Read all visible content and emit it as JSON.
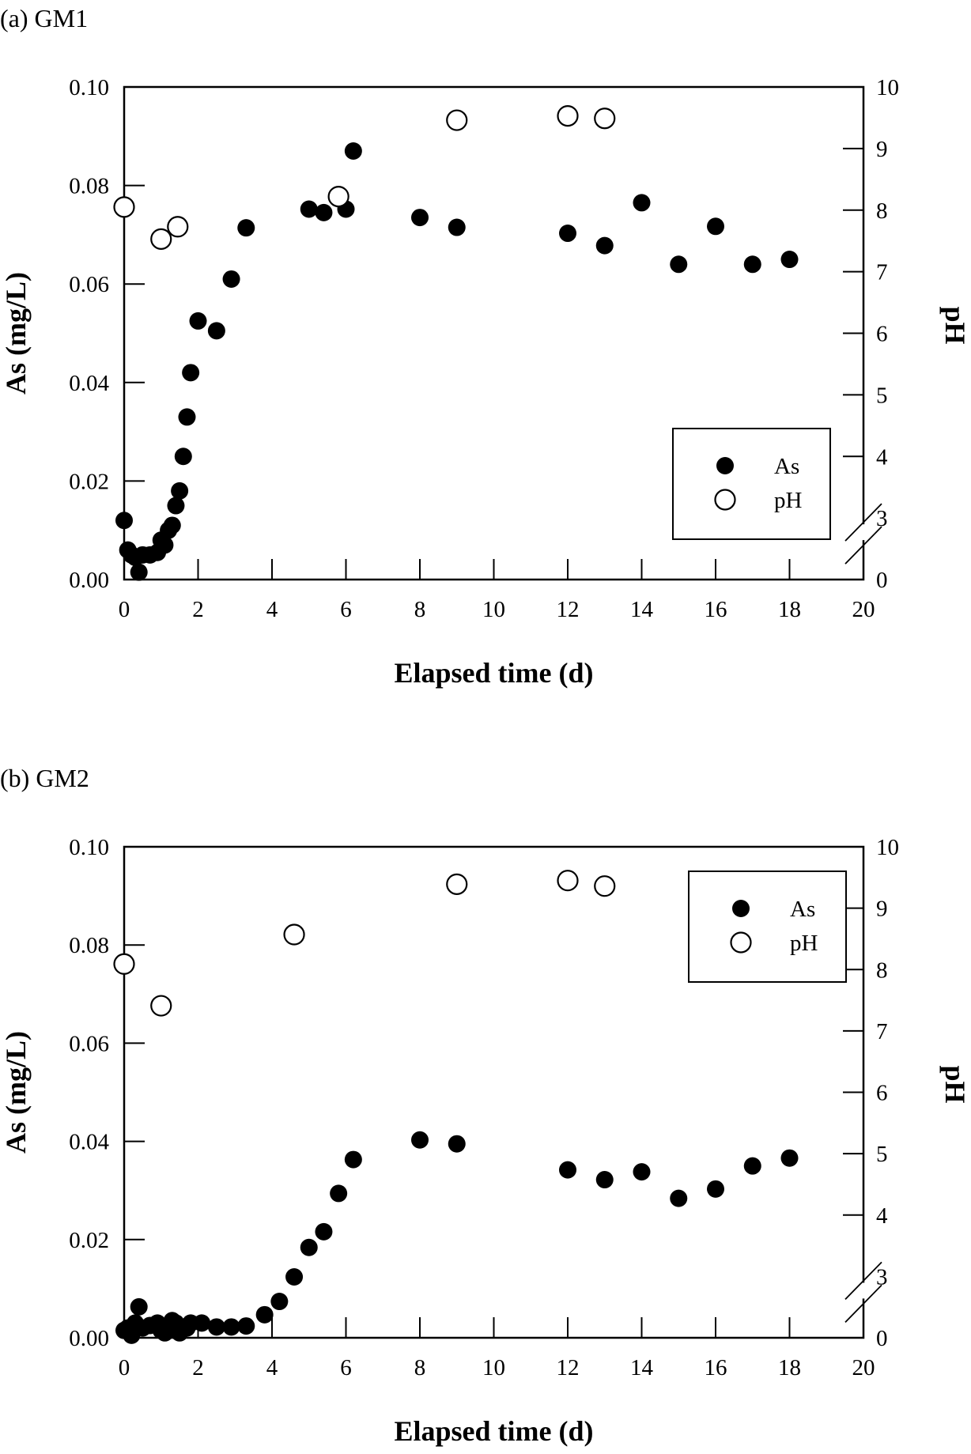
{
  "chart_data": [
    {
      "type": "scatter",
      "panel_title": "(a) GM1",
      "xlabel": "Elapsed time (d)",
      "ylabel": "As (mg/L)",
      "y2label": "pH",
      "xlim": [
        0,
        20
      ],
      "ylim": [
        0,
        0.1
      ],
      "y2lim": [
        2,
        10
      ],
      "y2_axis_break": "between 0 and 3",
      "x_ticks": [
        "0",
        "2",
        "4",
        "6",
        "8",
        "10",
        "12",
        "14",
        "16",
        "18",
        "20"
      ],
      "y_ticks": [
        "0.00",
        "0.02",
        "0.04",
        "0.06",
        "0.08",
        "0.10"
      ],
      "y2_ticks": [
        "0",
        "3",
        "4",
        "5",
        "6",
        "7",
        "8",
        "9",
        "10"
      ],
      "grid": false,
      "legend": {
        "placement": "lower-right",
        "entries": [
          "As",
          "pH"
        ]
      },
      "series": [
        {
          "name": "As",
          "axis": "left",
          "marker": "filled-circle",
          "x": [
            0,
            0.1,
            0.2,
            0.3,
            0.4,
            0.5,
            0.7,
            0.9,
            1.0,
            1.1,
            1.2,
            1.3,
            1.4,
            1.5,
            1.6,
            1.7,
            1.8,
            2.0,
            2.5,
            2.9,
            3.3,
            5.0,
            5.4,
            6.0,
            6.2,
            8.0,
            9.0,
            12.0,
            13.0,
            14.0,
            15.0,
            16.0,
            17.0,
            18.0
          ],
          "y": [
            0.012,
            0.006,
            0.005,
            0.0045,
            0.0015,
            0.005,
            0.005,
            0.0055,
            0.008,
            0.007,
            0.01,
            0.011,
            0.015,
            0.018,
            0.025,
            0.033,
            0.042,
            0.0525,
            0.0505,
            0.061,
            0.0714,
            0.0752,
            0.0745,
            0.0752,
            0.087,
            0.0735,
            0.0715,
            0.0703,
            0.0678,
            0.0765,
            0.064,
            0.0717,
            0.064,
            0.065
          ]
        },
        {
          "name": "pH",
          "axis": "right",
          "marker": "open-circle",
          "x": [
            0,
            1.0,
            1.45,
            5.8,
            9.0,
            12.0,
            13.0
          ],
          "y": [
            8.05,
            7.53,
            7.73,
            8.22,
            9.46,
            9.53,
            9.49
          ]
        }
      ]
    },
    {
      "type": "scatter",
      "panel_title": "(b) GM2",
      "xlabel": "Elapsed time (d)",
      "ylabel": "As (mg/L)",
      "y2label": "pH",
      "xlim": [
        0,
        20
      ],
      "ylim": [
        0,
        0.1
      ],
      "y2lim": [
        2,
        10
      ],
      "y2_axis_break": "between 0 and 3",
      "x_ticks": [
        "0",
        "2",
        "4",
        "6",
        "8",
        "10",
        "12",
        "14",
        "16",
        "18",
        "20"
      ],
      "y_ticks": [
        "0.00",
        "0.02",
        "0.04",
        "0.06",
        "0.08",
        "0.10"
      ],
      "y2_ticks": [
        "0",
        "3",
        "4",
        "5",
        "6",
        "7",
        "8",
        "9",
        "10"
      ],
      "grid": false,
      "legend": {
        "placement": "upper-right",
        "entries": [
          "As",
          "pH"
        ]
      },
      "series": [
        {
          "name": "As",
          "axis": "left",
          "marker": "filled-circle",
          "x": [
            0,
            0.1,
            0.2,
            0.3,
            0.4,
            0.5,
            0.7,
            0.9,
            1.0,
            1.1,
            1.3,
            1.4,
            1.5,
            1.7,
            1.8,
            2.1,
            2.5,
            2.9,
            3.3,
            3.8,
            4.2,
            4.6,
            5.0,
            5.4,
            5.8,
            6.2,
            8.0,
            9.0,
            12.0,
            13.0,
            14.0,
            15.0,
            16.0,
            17.0,
            18.0
          ],
          "y": [
            0.0015,
            0.002,
            0.0005,
            0.003,
            0.0063,
            0.002,
            0.0025,
            0.003,
            0.0015,
            0.001,
            0.0035,
            0.003,
            0.001,
            0.002,
            0.003,
            0.003,
            0.0022,
            0.0022,
            0.0024,
            0.0047,
            0.0074,
            0.0124,
            0.0184,
            0.0216,
            0.0294,
            0.0363,
            0.0403,
            0.0395,
            0.0342,
            0.0322,
            0.0338,
            0.0284,
            0.0303,
            0.035,
            0.0366
          ]
        },
        {
          "name": "pH",
          "axis": "right",
          "marker": "open-circle",
          "x": [
            0,
            1.0,
            4.6,
            9.0,
            12.0,
            13.0
          ],
          "y": [
            8.09,
            7.41,
            8.57,
            9.39,
            9.45,
            9.36
          ]
        }
      ]
    }
  ]
}
